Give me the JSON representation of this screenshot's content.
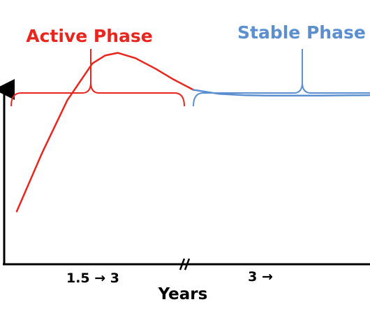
{
  "chart_data": {
    "type": "line",
    "title": "",
    "xlabel": "Years",
    "ylabel": "",
    "x_tick_labels": [
      "1.5 → 3",
      "3 →"
    ],
    "axis_break": true,
    "phases": [
      {
        "label": "Active Phase",
        "color": "#e8261e"
      },
      {
        "label": "Stable Phase",
        "color": "#5b8fcf"
      }
    ],
    "series": [
      {
        "color": "#e8261e",
        "x": [
          0.0,
          0.1,
          0.2,
          0.3,
          0.35,
          0.4,
          0.47,
          0.55,
          0.62,
          0.7
        ],
        "y": [
          0.2,
          0.42,
          0.62,
          0.76,
          0.79,
          0.8,
          0.78,
          0.74,
          0.7,
          0.66
        ]
      },
      {
        "color": "#5b8fcf",
        "x": [
          0.7,
          0.8,
          0.9,
          1.0,
          1.2,
          1.4
        ],
        "y": [
          0.66,
          0.645,
          0.64,
          0.638,
          0.638,
          0.64
        ]
      }
    ]
  }
}
